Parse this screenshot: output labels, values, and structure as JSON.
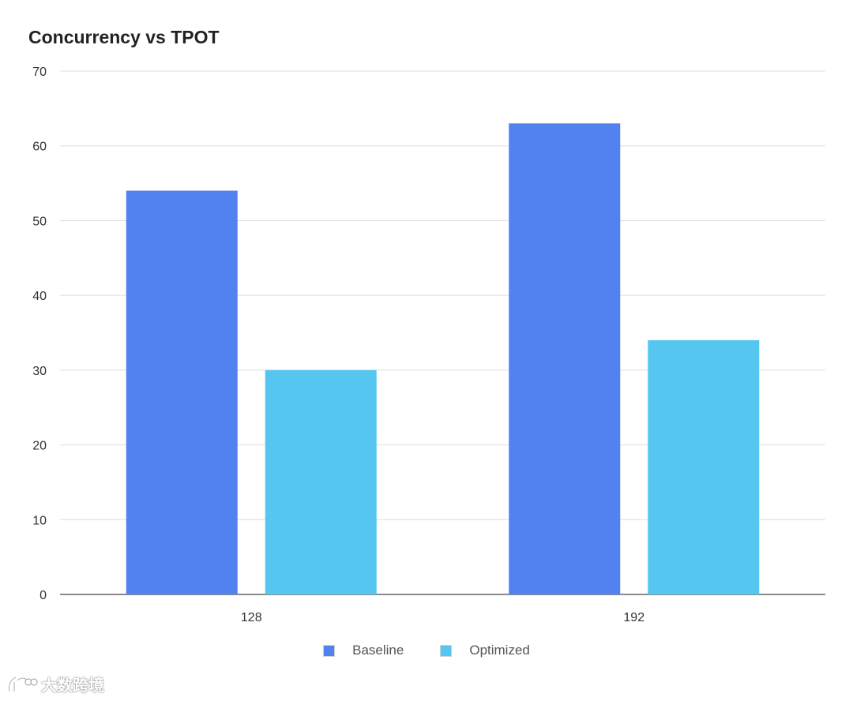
{
  "chart_data": {
    "type": "bar",
    "title": "Concurrency vs TPOT",
    "xlabel": "",
    "ylabel": "",
    "categories": [
      "128",
      "192"
    ],
    "series": [
      {
        "name": "Baseline",
        "values": [
          54,
          63
        ],
        "color": "#5282f0"
      },
      {
        "name": "Optimized",
        "values": [
          30,
          34
        ],
        "color": "#55c6f0"
      }
    ],
    "ylim": [
      0,
      70
    ],
    "yticks": [
      "0",
      "10",
      "20",
      "30",
      "40",
      "50",
      "60",
      "70"
    ],
    "grid": true,
    "legend_position": "bottom-center"
  },
  "watermark": {
    "text": "大数跨境"
  }
}
